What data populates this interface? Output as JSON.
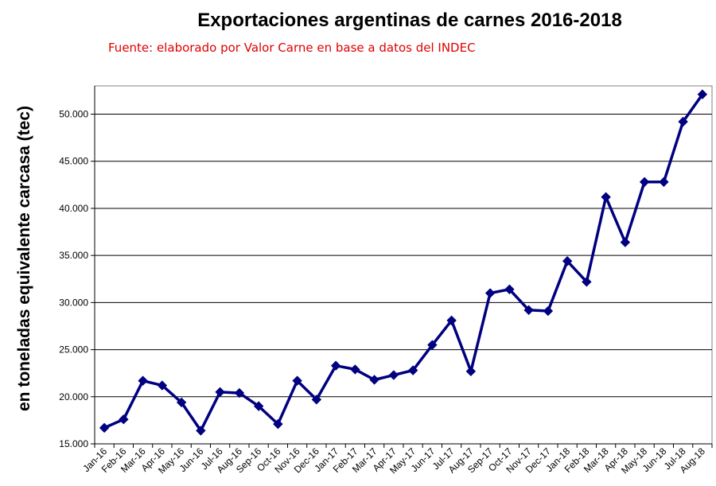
{
  "chart_data": {
    "type": "line",
    "title": "Exportaciones argentinas de carnes 2016-2018",
    "subtitle": "Fuente: elaborado por Valor Carne en base a datos del INDEC",
    "xlabel": "",
    "ylabel": "en toneladas equivalente carcasa  (tec)",
    "ylim": [
      15000,
      53000
    ],
    "yticks": [
      {
        "value": 15000,
        "label": "15.000"
      },
      {
        "value": 20000,
        "label": "20.000"
      },
      {
        "value": 25000,
        "label": "25.000"
      },
      {
        "value": 30000,
        "label": "30.000"
      },
      {
        "value": 35000,
        "label": "35.000"
      },
      {
        "value": 40000,
        "label": "40.000"
      },
      {
        "value": 45000,
        "label": "45.000"
      },
      {
        "value": 50000,
        "label": "50.000"
      }
    ],
    "grid": true,
    "legend": "none",
    "line_color": "#000080",
    "categories": [
      "Jan-16",
      "Feb-16",
      "Mar-16",
      "Apr-16",
      "May-16",
      "Jun-16",
      "Jul-16",
      "Aug-16",
      "Sep-16",
      "Oct-16",
      "Nov-16",
      "Dec-16",
      "Jan-17",
      "Feb-17",
      "Mar-17",
      "Apr-17",
      "May-17",
      "Jun-17",
      "Jul-17",
      "Aug-17",
      "Sep-17",
      "Oct-17",
      "Nov-17",
      "Dec-17",
      "Jan-18",
      "Feb-18",
      "Mar-18",
      "Apr-18",
      "May-18",
      "Jun-18",
      "Jul-18",
      "Aug-18"
    ],
    "series": [
      {
        "values": [
          16700,
          17600,
          21700,
          21200,
          19400,
          16400,
          20500,
          20400,
          19000,
          17100,
          21700,
          19700,
          23300,
          22900,
          21800,
          22300,
          22800,
          25500,
          28100,
          22700,
          31000,
          31400,
          29200,
          29100,
          34400,
          32200,
          41200,
          36400,
          42800,
          42800,
          49200,
          52100
        ]
      }
    ]
  }
}
